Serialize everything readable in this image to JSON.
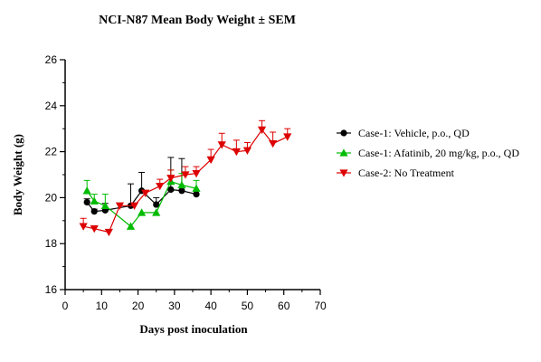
{
  "chart_data": {
    "type": "line",
    "title": "NCI-N87 Mean Body Weight ± SEM",
    "xlabel": "Days post inoculation",
    "ylabel": "Body Weight (g)",
    "xlim": [
      0,
      70
    ],
    "ylim": [
      16,
      26
    ],
    "xticks": [
      0,
      10,
      20,
      30,
      40,
      50,
      60,
      70
    ],
    "yticks": [
      16,
      18,
      20,
      22,
      24,
      26
    ],
    "grid": false,
    "legend_position": "right",
    "series": [
      {
        "name": "Case-1: Vehicle, p.o., QD",
        "color": "#000000",
        "marker": "circle",
        "x": [
          6,
          8,
          11,
          18,
          21,
          25,
          29,
          32,
          36
        ],
        "y": [
          19.8,
          19.4,
          19.45,
          19.65,
          20.3,
          19.7,
          20.35,
          20.3,
          20.15
        ],
        "err": [
          0.15,
          0.1,
          0.3,
          0.95,
          0.8,
          0.3,
          1.4,
          1.4,
          0.15
        ]
      },
      {
        "name": "Case-1: Afatinib, 20 mg/kg, p.o., QD",
        "color": "#00bb00",
        "marker": "triangle-up",
        "x": [
          6,
          8,
          11,
          18,
          21,
          25,
          29,
          32,
          36
        ],
        "y": [
          20.3,
          19.85,
          19.65,
          18.75,
          19.35,
          19.35,
          20.7,
          20.55,
          20.4
        ],
        "err": [
          0.45,
          0.3,
          0.5,
          0.0,
          0.0,
          0.0,
          0.5,
          0.5,
          0.35
        ]
      },
      {
        "name": "Case-2: No Treatment",
        "color": "#dd0000",
        "marker": "triangle-down",
        "x": [
          5,
          8,
          12,
          15,
          19,
          22,
          26,
          29,
          33,
          36,
          40,
          43,
          47,
          50,
          54,
          57,
          61
        ],
        "y": [
          18.75,
          18.65,
          18.5,
          19.65,
          19.65,
          20.2,
          20.5,
          20.85,
          21.0,
          21.05,
          21.65,
          22.3,
          22.0,
          22.05,
          22.95,
          22.35,
          22.65
        ],
        "err": [
          0.35,
          0.0,
          0.0,
          0.0,
          0.0,
          0.0,
          0.3,
          0.35,
          0.35,
          0.3,
          0.45,
          0.5,
          0.5,
          0.35,
          0.4,
          0.5,
          0.35
        ]
      }
    ]
  }
}
